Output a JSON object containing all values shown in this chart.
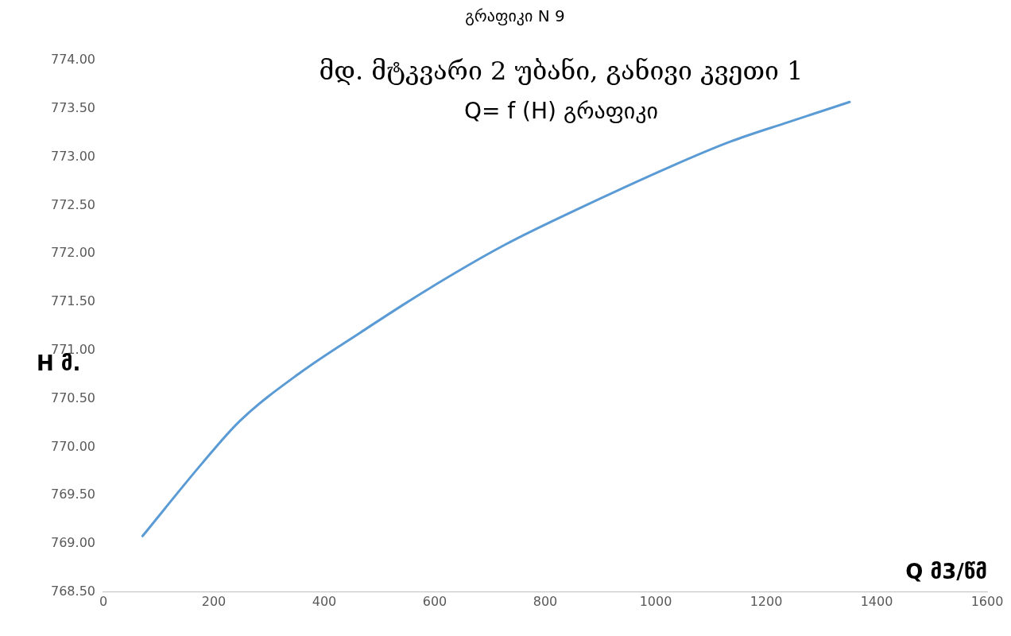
{
  "chart_data": {
    "type": "line",
    "title": "გრაფიკი N 9",
    "annotations": [
      "მდ. მტკვარი 2 უბანი, განივი კვეთი 1",
      "Q= f (H) გრაფიკი"
    ],
    "xlabel": "Q მ3/წმ",
    "ylabel": "H მ.",
    "x": [
      71,
      180,
      247,
      359,
      464,
      584,
      726,
      873,
      1030,
      1135,
      1239,
      1351
    ],
    "series": [
      {
        "color": "#5b9bd5",
        "values": [
          769.08,
          769.84,
          770.27,
          770.78,
          771.18,
          771.62,
          772.09,
          772.5,
          772.91,
          773.16,
          773.36,
          773.57
        ]
      }
    ],
    "xlim": [
      0,
      1600
    ],
    "xticks": [
      0,
      200,
      400,
      600,
      800,
      1000,
      1200,
      1400,
      1600
    ],
    "ylim": [
      768.5,
      774
    ],
    "yticks": [
      {
        "value": 768.5,
        "label": "768.50"
      },
      {
        "value": 769,
        "label": "769.00"
      },
      {
        "value": 769.5,
        "label": "769.50"
      },
      {
        "value": 770,
        "label": "770.00"
      },
      {
        "value": 770.5,
        "label": "770.50"
      },
      {
        "value": 771,
        "label": "771.00"
      },
      {
        "value": 771.5,
        "label": "771.50"
      },
      {
        "value": 772,
        "label": "772.00"
      },
      {
        "value": 772.5,
        "label": "772.50"
      },
      {
        "value": 773,
        "label": "773.00"
      },
      {
        "value": 773.5,
        "label": "773.50"
      },
      {
        "value": 774,
        "label": "774.00"
      }
    ],
    "grid": false,
    "legend": false,
    "marker": "none",
    "line_style": "solid"
  }
}
